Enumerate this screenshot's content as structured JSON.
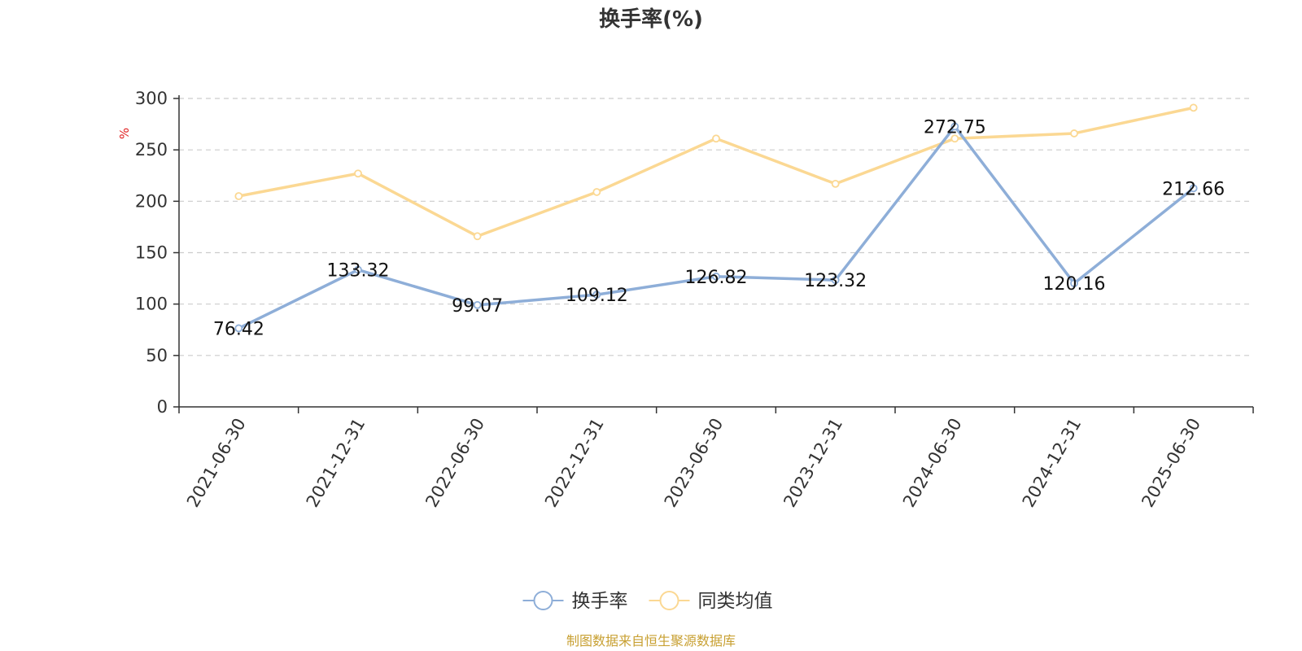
{
  "chart_data": {
    "type": "line",
    "title": "换手率(%)",
    "ylabel": "%",
    "ylim": [
      0,
      300
    ],
    "yticks": [
      0,
      50,
      100,
      150,
      200,
      250,
      300
    ],
    "grid": true,
    "legend_position": "bottom",
    "categories": [
      "2021-06-30",
      "2021-12-31",
      "2022-06-30",
      "2022-12-31",
      "2023-06-30",
      "2023-12-31",
      "2024-06-30",
      "2024-12-31",
      "2025-06-30"
    ],
    "series": [
      {
        "name": "换手率",
        "color": "#8eaed8",
        "values": [
          76.42,
          133.32,
          99.07,
          109.12,
          126.82,
          123.32,
          272.75,
          120.16,
          212.66
        ],
        "data_labels": [
          "76.42",
          "133.32",
          "99.07",
          "109.12",
          "126.82",
          "123.32",
          "272.75",
          "120.16",
          "212.66"
        ]
      },
      {
        "name": "同类均值",
        "color": "#fbd893",
        "values": [
          205,
          227,
          166,
          209,
          261,
          217,
          261,
          266,
          291
        ]
      }
    ],
    "source_note": "制图数据来自恒生聚源数据库"
  }
}
